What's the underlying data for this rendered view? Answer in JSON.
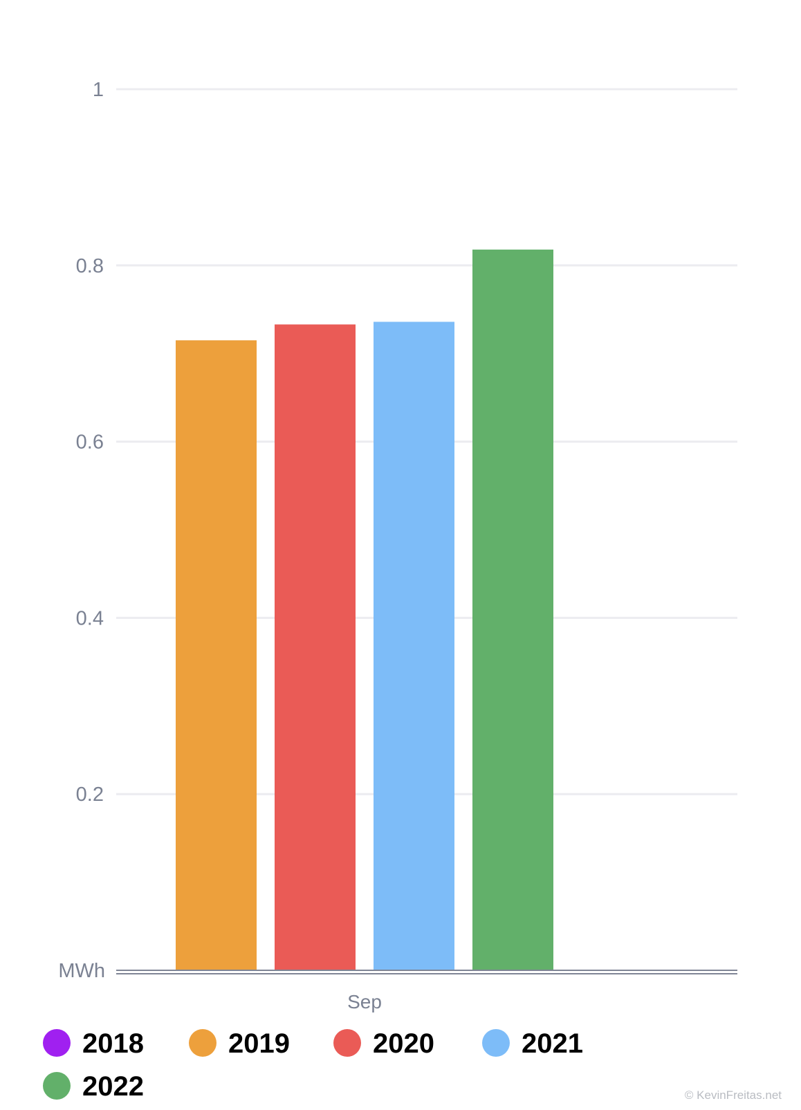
{
  "chart_data": {
    "type": "bar",
    "categories": [
      "Sep"
    ],
    "series": [
      {
        "name": "2018",
        "color": "#A020F0",
        "values": [
          null
        ]
      },
      {
        "name": "2019",
        "color": "#EDA03C",
        "values": [
          0.715
        ]
      },
      {
        "name": "2020",
        "color": "#EA5B56",
        "values": [
          0.733
        ]
      },
      {
        "name": "2021",
        "color": "#7DBCF8",
        "values": [
          0.736
        ]
      },
      {
        "name": "2022",
        "color": "#62B06A",
        "values": [
          0.818
        ]
      }
    ],
    "title": "",
    "xlabel": "",
    "ylabel": "MWh",
    "ylim": [
      0,
      1
    ],
    "y_ticks": [
      {
        "value": 0.2,
        "label": "0.2"
      },
      {
        "value": 0.4,
        "label": "0.4"
      },
      {
        "value": 0.6,
        "label": "0.6"
      },
      {
        "value": 0.8,
        "label": "0.8"
      },
      {
        "value": 1,
        "label": "1"
      }
    ],
    "grid": true,
    "legend_position": "bottom"
  },
  "watermark": "© KevinFreitas.net"
}
